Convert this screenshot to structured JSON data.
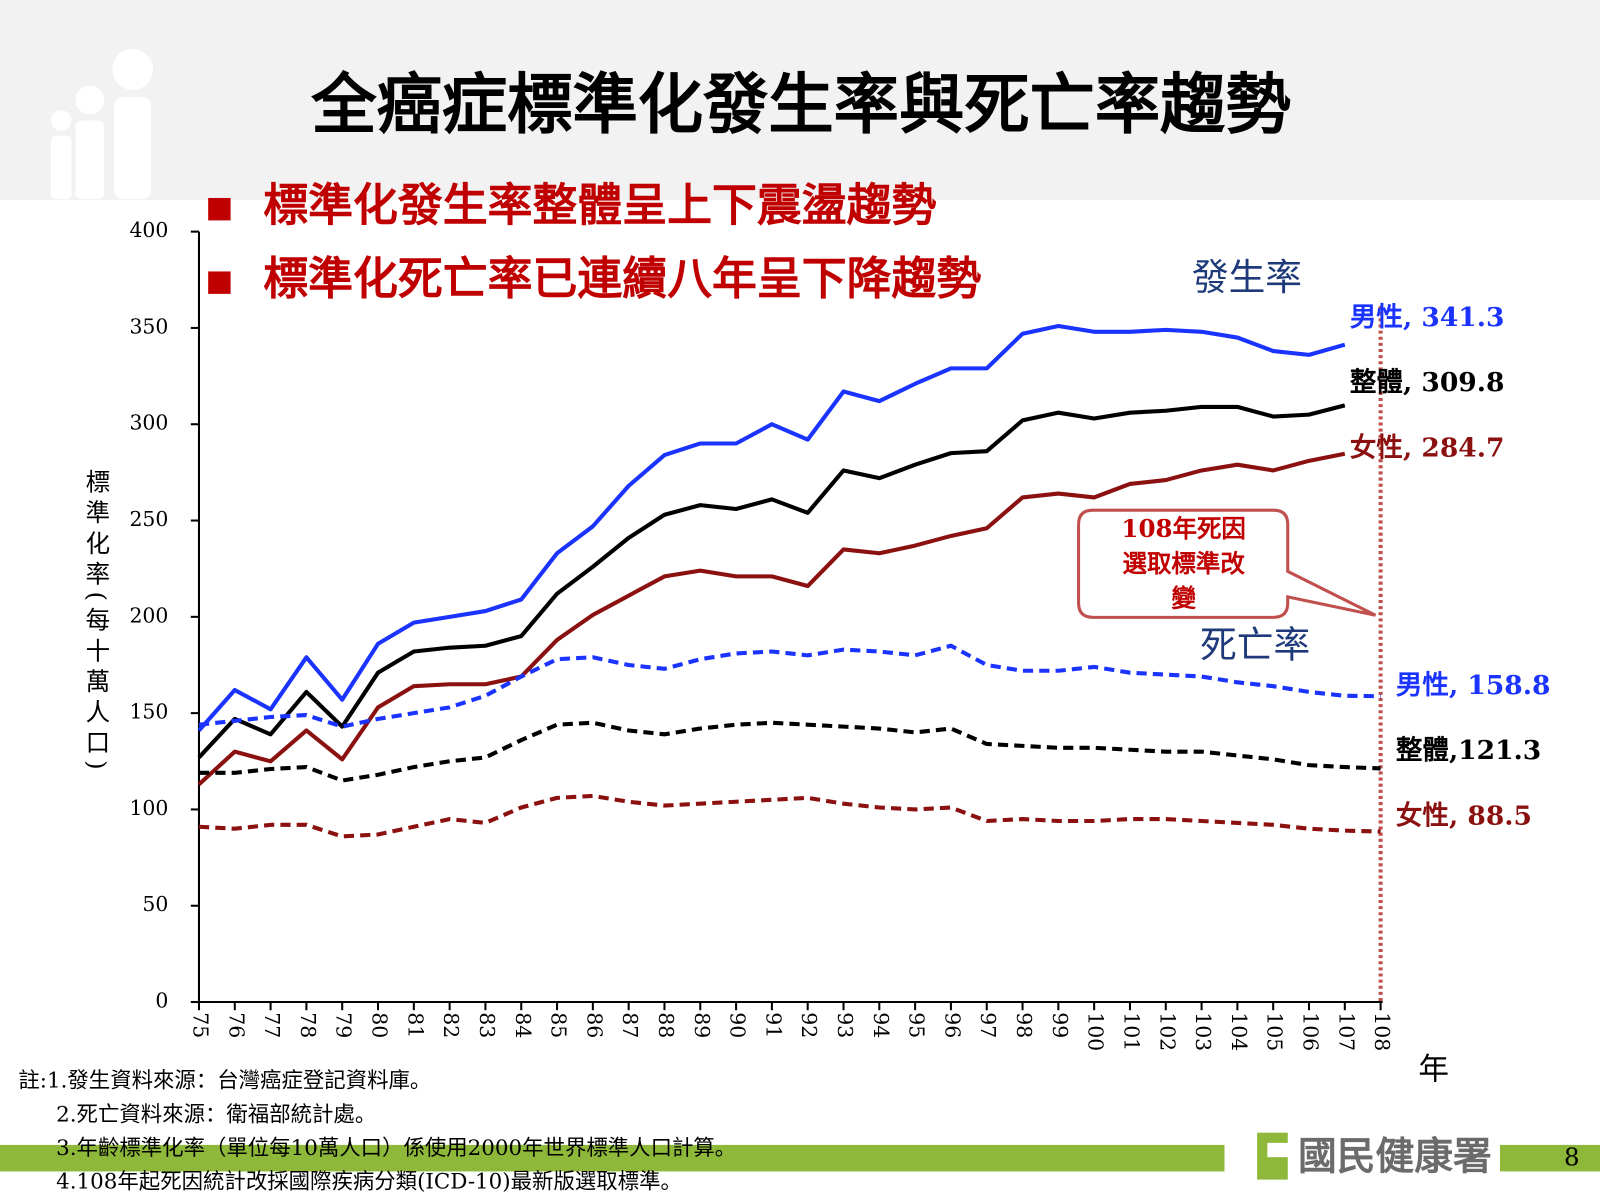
{
  "header": {
    "title": "全癌症標準化發生率與死亡率趨勢",
    "bullets": [
      "標準化發生率整體呈上下震盪趨勢",
      "標準化死亡率已連續八年呈下降趨勢"
    ]
  },
  "chart_data": {
    "type": "line",
    "ylabel": "標準化率(每十萬人口)",
    "xlabel": "年",
    "categories": [
      "75",
      "76",
      "77",
      "78",
      "79",
      "80",
      "81",
      "82",
      "83",
      "84",
      "85",
      "86",
      "87",
      "88",
      "89",
      "90",
      "91",
      "92",
      "93",
      "94",
      "95",
      "96",
      "97",
      "98",
      "99",
      "100",
      "101",
      "102",
      "103",
      "104",
      "105",
      "106",
      "107",
      "108"
    ],
    "ylim": [
      0,
      400
    ],
    "yticks": [
      0,
      50,
      100,
      150,
      200,
      250,
      300,
      350,
      400
    ],
    "groups": [
      "發生率",
      "死亡率"
    ],
    "series": [
      {
        "group": 0,
        "label": "男性, 341.3",
        "color": "#1a33ff",
        "dashed": false,
        "values": [
          141,
          162,
          152,
          179,
          157,
          186,
          197,
          200,
          203,
          209,
          233,
          247,
          268,
          284,
          290,
          290,
          300,
          292,
          317,
          312,
          321,
          329,
          329,
          347,
          351,
          348,
          348,
          349,
          348,
          345,
          338,
          336,
          341.3,
          null
        ]
      },
      {
        "group": 0,
        "label": "整體, 309.8",
        "color": "#000000",
        "dashed": false,
        "values": [
          127,
          147,
          139,
          161,
          143,
          171,
          182,
          184,
          185,
          190,
          212,
          226,
          241,
          253,
          258,
          256,
          261,
          254,
          276,
          272,
          279,
          285,
          286,
          302,
          306,
          303,
          306,
          307,
          309,
          309,
          304,
          305,
          309.8,
          null
        ]
      },
      {
        "group": 0,
        "label": "女性, 284.7",
        "color": "#8b1010",
        "dashed": false,
        "values": [
          113,
          130,
          125,
          141,
          126,
          153,
          164,
          165,
          165,
          169,
          188,
          201,
          211,
          221,
          224,
          221,
          221,
          216,
          235,
          233,
          237,
          242,
          246,
          262,
          264,
          262,
          269,
          271,
          276,
          279,
          276,
          281,
          284.7,
          null
        ]
      },
      {
        "group": 1,
        "label": "男性, 158.8",
        "color": "#1a33ff",
        "dashed": true,
        "values": [
          144,
          146,
          148,
          149,
          143,
          147,
          150,
          153,
          159,
          169,
          178,
          179,
          175,
          173,
          178,
          181,
          182,
          180,
          183,
          182,
          180,
          185,
          175,
          172,
          172,
          174,
          171,
          170,
          169,
          166,
          164,
          161,
          159,
          158.8
        ]
      },
      {
        "group": 1,
        "label": "整體,121.3",
        "color": "#000000",
        "dashed": true,
        "values": [
          119,
          119,
          121,
          122,
          115,
          118,
          122,
          125,
          127,
          136,
          144,
          145,
          141,
          139,
          142,
          144,
          145,
          144,
          143,
          142,
          140,
          142,
          134,
          133,
          132,
          132,
          131,
          130,
          130,
          128,
          126,
          123,
          122,
          121.3
        ]
      },
      {
        "group": 1,
        "label": "女性, 88.5",
        "color": "#8b1010",
        "dashed": true,
        "values": [
          91,
          90,
          92,
          92,
          86,
          87,
          91,
          95,
          93,
          101,
          106,
          107,
          104,
          102,
          103,
          104,
          105,
          106,
          103,
          101,
          100,
          101,
          94,
          95,
          94,
          94,
          95,
          95,
          94,
          93,
          92,
          90,
          89,
          88.5
        ]
      }
    ],
    "annotation": {
      "category": 33,
      "lines": [
        "108年死因",
        "選取標準改",
        "變"
      ]
    }
  },
  "notes": [
    "註:1.發生資料來源：台灣癌症登記資料庫。",
    "2.死亡資料來源：衛福部統計處。",
    "3.年齡標準化率（單位每10萬人口）係使用2000年世界標準人口計算。",
    "4.108年起死因統計改採國際疾病分類(ICD-10)最新版選取標準。"
  ],
  "footer": {
    "logo": "國民健康署",
    "page": "8"
  }
}
